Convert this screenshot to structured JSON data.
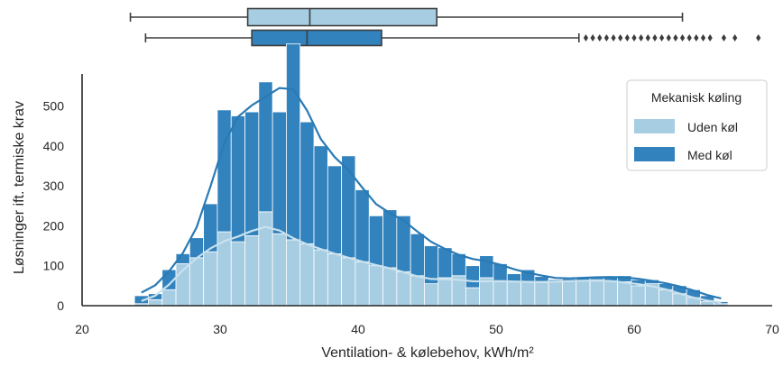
{
  "chart_data": {
    "type": "bar",
    "subtype": "stacked-histogram-with-kde-and-marginal-boxplots",
    "xlabel": "Ventilation- & kølebehov, kWh/m²",
    "ylabel": "Løsninger ift. termiske krav",
    "xlim": [
      20,
      70
    ],
    "ylim": [
      0,
      580
    ],
    "xticks": [
      "20",
      "30",
      "40",
      "50",
      "60",
      "70"
    ],
    "yticks": [
      "0",
      "100",
      "200",
      "300",
      "400",
      "500"
    ],
    "bin_start": 23.8,
    "bin_width": 1.0,
    "grid": false,
    "legend": {
      "title": "Mekanisk køling",
      "position": "top-right",
      "entries": [
        "Uden køl",
        "Med køl"
      ]
    },
    "series": [
      {
        "name": "Uden køl",
        "color": "#a6cde2",
        "values": [
          5,
          15,
          40,
          105,
          120,
          135,
          185,
          160,
          175,
          235,
          180,
          165,
          155,
          140,
          130,
          120,
          110,
          100,
          95,
          85,
          75,
          55,
          70,
          75,
          45,
          70,
          60,
          60,
          60,
          58,
          60,
          62,
          62,
          65,
          62,
          60,
          50,
          55,
          40,
          30,
          20,
          10,
          5
        ]
      },
      {
        "name": "Med køl",
        "color": "#3182bd",
        "values": [
          20,
          15,
          50,
          25,
          50,
          120,
          305,
          315,
          310,
          325,
          305,
          490,
          305,
          260,
          220,
          255,
          180,
          125,
          145,
          140,
          105,
          95,
          75,
          55,
          55,
          55,
          45,
          20,
          30,
          15,
          5,
          5,
          10,
          5,
          10,
          15,
          15,
          10,
          15,
          20,
          20,
          15,
          5
        ]
      }
    ],
    "boxplots": [
      {
        "name": "Uden køl",
        "whisker_low": 23.5,
        "q1": 32.0,
        "median": 36.5,
        "q3": 45.7,
        "whisker_high": 63.5
      },
      {
        "name": "Med køl",
        "whisker_low": 24.6,
        "q1": 32.3,
        "median": 36.3,
        "q3": 41.7,
        "whisker_high": 56.0,
        "outliers": [
          56.5,
          57.0,
          57.5,
          58.0,
          58.5,
          59.0,
          59.5,
          60.0,
          60.5,
          61.0,
          61.5,
          62.0,
          62.5,
          63.0,
          63.5,
          64.0,
          64.5,
          65.0,
          65.5,
          66.5,
          67.3,
          69.0
        ]
      }
    ]
  }
}
